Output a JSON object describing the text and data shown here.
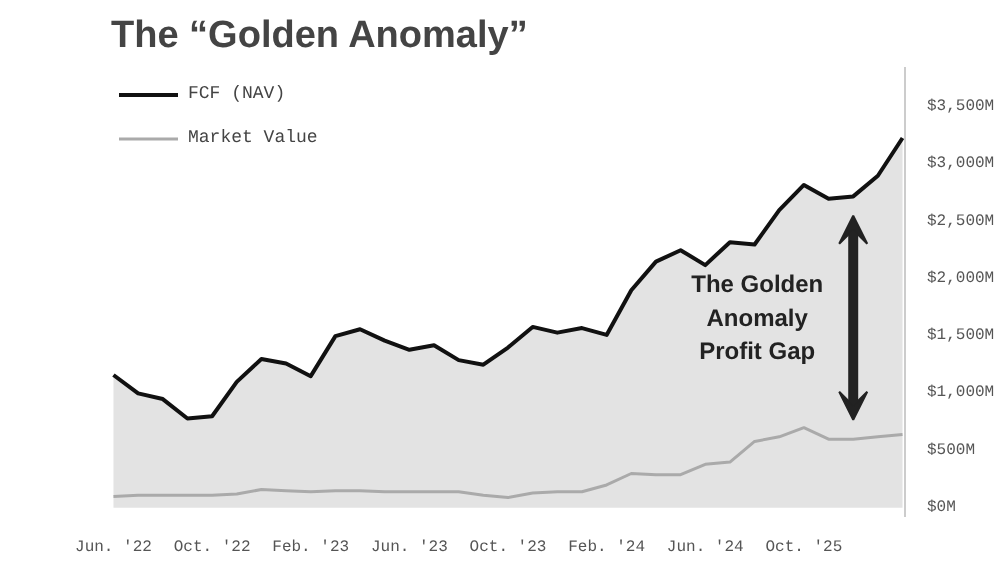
{
  "chart_data": {
    "type": "line",
    "title": "The “Golden Anomaly”",
    "legend": "top left",
    "grid": false,
    "categories": [
      "Jun. '22",
      null,
      null,
      null,
      "Oct. '22",
      null,
      null,
      null,
      "Feb. '23",
      null,
      null,
      null,
      "Jun. '23",
      null,
      null,
      null,
      "Oct. '23",
      null,
      null,
      null,
      "Feb. '24",
      null,
      null,
      null,
      "Jun. '24",
      null,
      null,
      null,
      "Oct. '25",
      null,
      null,
      null,
      null
    ],
    "ylim": [
      -80,
      3850
    ],
    "yticks": [
      {
        "value": 0,
        "label": "$0M"
      },
      {
        "value": 500,
        "label": "$500M"
      },
      {
        "value": 1000,
        "label": "$1,000M"
      },
      {
        "value": 1500,
        "label": "$1,500M"
      },
      {
        "value": 2000,
        "label": "$2,000M"
      },
      {
        "value": 2500,
        "label": "$2,500M"
      },
      {
        "value": 3000,
        "label": "$3,000M"
      },
      {
        "value": 3500,
        "label": "$3,500M"
      }
    ],
    "series": [
      {
        "name": "FCF (NAV)",
        "type": "area",
        "color": "#111111",
        "values": [
          1160,
          1000,
          950,
          780,
          800,
          1100,
          1300,
          1260,
          1150,
          1500,
          1560,
          1460,
          1380,
          1420,
          1290,
          1250,
          1400,
          1580,
          1530,
          1570,
          1510,
          1900,
          2150,
          2250,
          2120,
          2320,
          2300,
          2600,
          2820,
          2700,
          2720,
          2900,
          3230
        ]
      },
      {
        "name": "Market Value",
        "color": "#aaaaaa",
        "values": [
          100,
          110,
          110,
          110,
          110,
          120,
          160,
          150,
          140,
          150,
          150,
          140,
          140,
          140,
          140,
          110,
          90,
          130,
          140,
          140,
          200,
          300,
          290,
          290,
          380,
          400,
          580,
          620,
          700,
          600,
          600,
          620,
          640
        ]
      }
    ],
    "annotations": [
      "The Golden\nAnomaly\nProfit Gap"
    ]
  }
}
